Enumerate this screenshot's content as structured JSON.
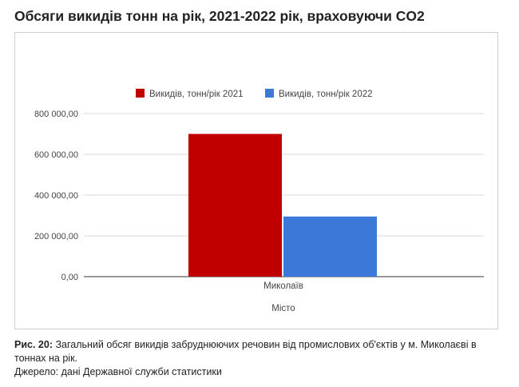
{
  "page": {
    "title": "Обсяги викидів тонн на рік, 2021-2022 рік, враховуючи CO2",
    "caption_label": "Рис. 20:",
    "caption_text": " Загальний обсяг викидів забруднюючих речовин від промислових об'єктів у м. Миколаєві в тоннах на рік.",
    "source": "Джерело: дані Державної служби статистики"
  },
  "chart_data": {
    "type": "bar",
    "categories": [
      "Миколаїв"
    ],
    "series": [
      {
        "name": "Викидів, тонн/рік 2021",
        "values": [
          700000
        ],
        "color": "#c00000"
      },
      {
        "name": "Викидів, тонн/рік 2022",
        "values": [
          295000
        ],
        "color": "#3c78d8"
      }
    ],
    "xlabel": "Місто",
    "ylabel": "",
    "ylim": [
      0,
      800000
    ],
    "yticks": [
      "0,00",
      "200 000,00",
      "400 000,00",
      "600 000,00",
      "800 000,00"
    ],
    "grid": true,
    "legend_position": "top"
  }
}
